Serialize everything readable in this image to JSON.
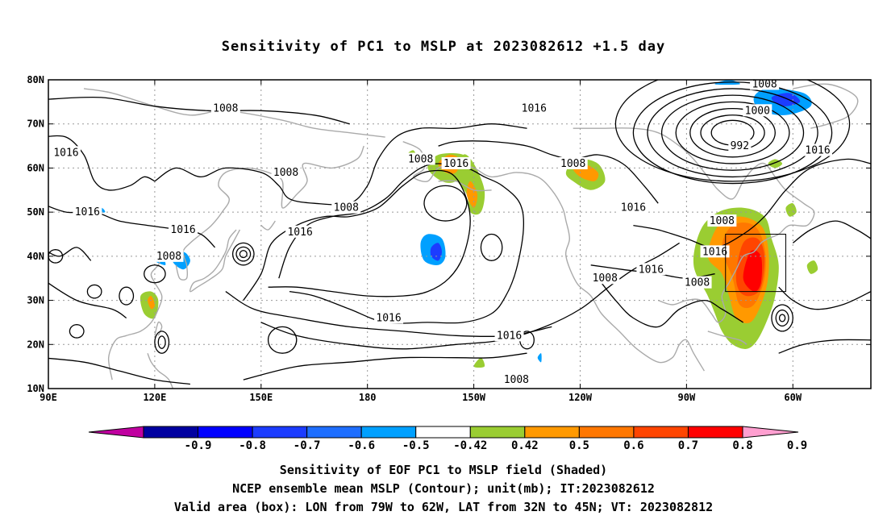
{
  "title": "Sensitivity of PC1 to MSLP at 2023082612 +1.5 day",
  "lat_ticks": [
    "80N",
    "70N",
    "60N",
    "50N",
    "40N",
    "30N",
    "20N",
    "10N"
  ],
  "lon_ticks": [
    "90E",
    "120E",
    "150E",
    "180",
    "150W",
    "120W",
    "90W",
    "60W"
  ],
  "contour_labels": [
    {
      "text": "1008",
      "lon": 140,
      "lat": 73.5
    },
    {
      "text": "1016",
      "lon": 95,
      "lat": 63.5
    },
    {
      "text": "1008",
      "lon": 157,
      "lat": 59
    },
    {
      "text": "1016",
      "lon": 101,
      "lat": 50
    },
    {
      "text": "1016",
      "lon": 128,
      "lat": 46
    },
    {
      "text": "1008",
      "lon": 124,
      "lat": 40
    },
    {
      "text": "1016",
      "lon": 161,
      "lat": 45.5
    },
    {
      "text": "1008",
      "lon": 174,
      "lat": 51
    },
    {
      "text": "1008",
      "lon": 195,
      "lat": 62
    },
    {
      "text": "1016",
      "lon": 205,
      "lat": 61
    },
    {
      "text": "1016",
      "lon": 186,
      "lat": 26
    },
    {
      "text": "1016",
      "lon": 220,
      "lat": 22
    },
    {
      "text": "1016",
      "lon": 227,
      "lat": 73.5
    },
    {
      "text": "1008",
      "lon": 238,
      "lat": 61
    },
    {
      "text": "1016",
      "lon": 255,
      "lat": 51
    },
    {
      "text": "1008",
      "lon": 247,
      "lat": 35
    },
    {
      "text": "1016",
      "lon": 260,
      "lat": 37
    },
    {
      "text": "1008",
      "lon": 273,
      "lat": 34
    },
    {
      "text": "1016",
      "lon": 278,
      "lat": 41
    },
    {
      "text": "1008",
      "lon": 280,
      "lat": 48
    },
    {
      "text": "1008",
      "lon": 292,
      "lat": 79
    },
    {
      "text": "1000",
      "lon": 290,
      "lat": 73
    },
    {
      "text": "992",
      "lon": 285,
      "lat": 65
    },
    {
      "text": "1016",
      "lon": 307,
      "lat": 64
    },
    {
      "text": "1008",
      "lon": 222,
      "lat": 12
    }
  ],
  "colorbar": {
    "ticks": [
      "-0.9",
      "-0.8",
      "-0.7",
      "-0.6",
      "-0.5",
      "-0.42",
      "0.42",
      "0.5",
      "0.6",
      "0.7",
      "0.8",
      "0.9"
    ],
    "colors": [
      "#0000a0",
      "#0000ff",
      "#1c3cff",
      "#1e6eff",
      "#00a0ff",
      "#00c8ff",
      "#ffffff",
      "#9acd32",
      "#ff9900",
      "#ff7700",
      "#ff4500",
      "#ff0000"
    ],
    "low_end_color": "#c000a0",
    "high_end_color": "#ff9fd0"
  },
  "captions": [
    "Sensitivity of EOF PC1 to MSLP field (Shaded)",
    "NCEP ensemble mean MSLP (Contour); unit(mb); IT:2023082612",
    "Valid area (box): LON from 79W to 62W, LAT from 32N to 45N; VT: 2023082812"
  ],
  "valid_box": {
    "lon_min": -79,
    "lon_max": -62,
    "lat_min": 32,
    "lat_max": 45
  }
}
